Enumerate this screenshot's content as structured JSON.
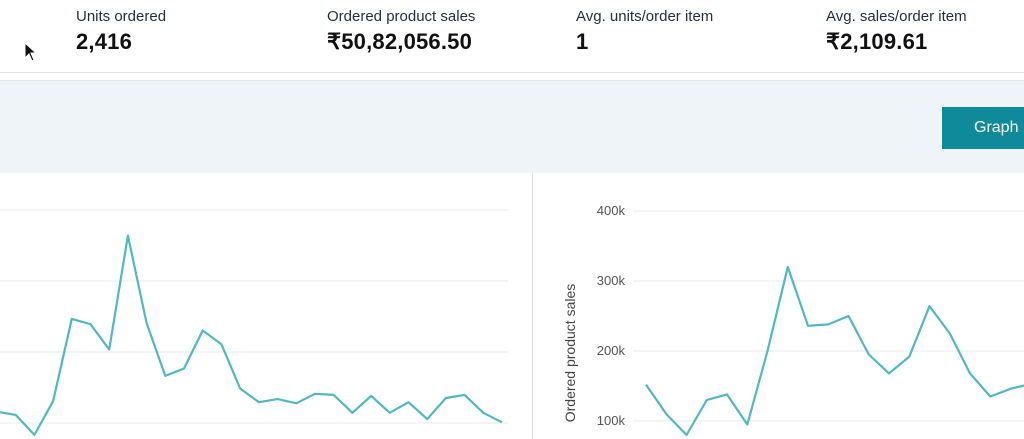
{
  "metrics": [
    {
      "label": "Units ordered",
      "value": "2,416"
    },
    {
      "label": "Ordered product sales",
      "value": "₹50,82,056.50"
    },
    {
      "label": "Avg. units/order item",
      "value": "1"
    },
    {
      "label": "Avg. sales/order item",
      "value": "₹2,109.61"
    }
  ],
  "toolbar": {
    "graph_button_label": "Graph"
  },
  "colors": {
    "accent": "#0f8a9b",
    "line": "#4fb8c4",
    "grid": "#e6e9eb",
    "toolbar_bg": "#eef4f8"
  },
  "icons": {
    "cursor": "mouse-pointer-icon"
  },
  "chart_data": [
    {
      "type": "line",
      "title": "",
      "xlabel": "",
      "ylabel": "",
      "ylim": [
        0,
        1
      ],
      "y": [
        0.115,
        0.1,
        0.005,
        0.165,
        0.555,
        0.53,
        0.41,
        0.95,
        0.535,
        0.285,
        0.32,
        0.5,
        0.435,
        0.225,
        0.16,
        0.175,
        0.155,
        0.2,
        0.195,
        0.11,
        0.19,
        0.11,
        0.16,
        0.08,
        0.18,
        0.195,
        0.11,
        0.065
      ]
    },
    {
      "type": "line",
      "title": "",
      "xlabel": "",
      "ylabel": "Ordered product sales",
      "ylim": [
        50000,
        420000
      ],
      "yticks": [
        {
          "value": 100000,
          "label": "100k"
        },
        {
          "value": 200000,
          "label": "200k"
        },
        {
          "value": 300000,
          "label": "300k"
        },
        {
          "value": 400000,
          "label": "400k"
        }
      ],
      "y": [
        152000,
        110000,
        80000,
        130000,
        138000,
        95000,
        200000,
        320000,
        236000,
        238000,
        250000,
        195000,
        168000,
        192000,
        264000,
        225000,
        168000,
        135000,
        146000,
        153000,
        152000
      ]
    }
  ]
}
